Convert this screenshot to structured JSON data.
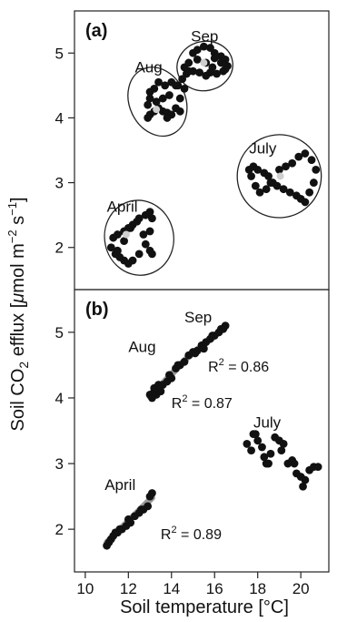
{
  "chart_data": {
    "type": "scatter",
    "ylabel_parts": {
      "pre": "Soil CO",
      "sub2": "2",
      "mid": " efflux [",
      "mu": "μ",
      "unit": "mol m",
      "exp1": "−2",
      "s": " s",
      "exp2": "−1",
      "post": "]"
    },
    "xlabel": "Soil temperature [°C]",
    "xlim": [
      9.5,
      21.3
    ],
    "xticks": [
      10,
      12,
      14,
      16,
      18,
      20
    ],
    "ylim": [
      1.35,
      5.65
    ],
    "yticks": [
      2,
      3,
      4,
      5
    ],
    "panels": [
      {
        "label": "(a)",
        "annotations": [
          {
            "text": "Sep",
            "x": 14.9,
            "y": 5.18
          },
          {
            "text": "Aug",
            "x": 12.3,
            "y": 4.7
          },
          {
            "text": "July",
            "x": 17.6,
            "y": 3.45
          },
          {
            "text": "April",
            "x": 11.0,
            "y": 2.55
          }
        ],
        "ellipses": [
          {
            "cx": 15.55,
            "cy": 4.8,
            "rx": 1.3,
            "ry": 0.38,
            "rot": -12
          },
          {
            "cx": 13.35,
            "cy": 4.25,
            "rx": 1.3,
            "ry": 0.55,
            "rot": -25
          },
          {
            "cx": 19.0,
            "cy": 3.1,
            "rx": 1.95,
            "ry": 0.64,
            "rot": -5
          },
          {
            "cx": 12.5,
            "cy": 2.15,
            "rx": 1.6,
            "ry": 0.58,
            "rot": -12
          }
        ],
        "series": [
          {
            "name": "Sep",
            "x": [
              15.0,
              15.2,
              15.5,
              15.8,
              16.0,
              16.3,
              16.5,
              16.6,
              16.4,
              16.1,
              15.8,
              15.6,
              15.3,
              15.0,
              14.8,
              14.7,
              14.6,
              14.8,
              15.2,
              15.6,
              16.0,
              16.3,
              16.5,
              15.9
            ],
            "y": [
              5.0,
              5.05,
              5.1,
              5.08,
              5.0,
              4.95,
              4.9,
              4.8,
              4.72,
              4.68,
              4.7,
              4.65,
              4.7,
              4.72,
              4.72,
              4.68,
              4.78,
              4.85,
              4.9,
              4.85,
              4.92,
              4.85,
              4.75,
              4.78
            ]
          },
          {
            "name": "Aug",
            "x": [
              12.9,
              13.0,
              13.2,
              13.4,
              13.6,
              13.8,
              14.0,
              14.2,
              14.4,
              14.3,
              14.0,
              13.7,
              13.4,
              13.2,
              13.0,
              12.9,
              13.0,
              13.3,
              13.6,
              13.9,
              14.2,
              14.5,
              14.6,
              14.4,
              13.8
            ],
            "y": [
              4.0,
              4.05,
              4.1,
              4.15,
              4.1,
              4.08,
              4.05,
              4.15,
              4.3,
              4.5,
              4.55,
              4.5,
              4.55,
              4.45,
              4.3,
              4.2,
              4.4,
              4.25,
              4.3,
              4.35,
              4.5,
              4.6,
              4.45,
              4.1,
              4.0
            ]
          },
          {
            "name": "July",
            "x": [
              17.6,
              17.8,
              18.0,
              18.3,
              18.5,
              18.6,
              18.9,
              19.2,
              19.5,
              19.8,
              20.0,
              20.2,
              20.4,
              20.6,
              20.7,
              20.5,
              20.2,
              19.9,
              19.6,
              19.3,
              19.0,
              18.7,
              18.4,
              18.1,
              17.9,
              17.7
            ],
            "y": [
              3.2,
              3.25,
              3.2,
              3.15,
              3.1,
              3.0,
              2.95,
              2.9,
              2.85,
              2.8,
              2.75,
              2.7,
              2.85,
              3.0,
              3.2,
              3.35,
              3.45,
              3.4,
              3.3,
              3.25,
              3.2,
              3.0,
              2.9,
              2.85,
              2.95,
              3.1
            ]
          },
          {
            "name": "April",
            "x": [
              11.2,
              11.3,
              11.5,
              11.8,
              12.0,
              12.2,
              12.5,
              12.8,
              13.0,
              13.1,
              13.0,
              12.8,
              12.5,
              12.2,
              12.0,
              11.8,
              11.6,
              11.4,
              11.5,
              11.8,
              12.1,
              12.4,
              12.7,
              13.0,
              13.1
            ],
            "y": [
              2.0,
              2.15,
              2.2,
              2.25,
              2.3,
              2.35,
              2.45,
              2.5,
              2.55,
              2.45,
              2.25,
              2.05,
              1.9,
              1.8,
              1.75,
              1.8,
              1.85,
              1.9,
              1.95,
              2.1,
              2.3,
              2.4,
              2.2,
              1.95,
              1.9
            ]
          }
        ],
        "highlights": {
          "x": [
            13.3,
            15.5,
            19.05,
            11.9
          ],
          "y": [
            4.13,
            4.85,
            3.1,
            2.2
          ]
        }
      },
      {
        "label": "(b)",
        "annotations": [
          {
            "text": "Sep",
            "x": 14.6,
            "y": 5.15
          },
          {
            "text": "Aug",
            "x": 12.0,
            "y": 4.7
          },
          {
            "text": "July",
            "x": 17.8,
            "y": 3.55
          },
          {
            "text": "April",
            "x": 10.9,
            "y": 2.6
          }
        ],
        "r2_labels": [
          {
            "text": "0.86",
            "x": 15.7,
            "y": 4.4
          },
          {
            "text": "0.87",
            "x": 14.0,
            "y": 3.85
          },
          {
            "text": "0.89",
            "x": 13.5,
            "y": 1.85
          }
        ],
        "trendlines": [
          {
            "x": [
              14.8,
              16.5
            ],
            "y": [
              4.63,
              5.08
            ]
          },
          {
            "x": [
              13.0,
              14.7
            ],
            "y": [
              4.02,
              4.6
            ]
          },
          {
            "x": [
              11.0,
              13.1
            ],
            "y": [
              1.8,
              2.48
            ]
          }
        ],
        "series": [
          {
            "name": "Sep",
            "x": [
              14.8,
              15.0,
              15.2,
              15.4,
              15.6,
              15.8,
              16.0,
              16.2,
              16.4,
              16.5,
              15.1,
              15.5,
              15.9,
              16.3
            ],
            "y": [
              4.65,
              4.7,
              4.72,
              4.8,
              4.85,
              4.9,
              4.95,
              5.0,
              5.05,
              5.1,
              4.68,
              4.75,
              4.95,
              5.05
            ]
          },
          {
            "name": "Aug",
            "x": [
              13.0,
              13.1,
              13.2,
              13.3,
              13.4,
              13.5,
              13.6,
              13.8,
              14.0,
              14.2,
              14.4,
              14.6,
              13.2,
              13.4,
              13.9,
              14.3
            ],
            "y": [
              4.05,
              4.0,
              4.1,
              4.05,
              4.15,
              4.1,
              4.2,
              4.25,
              4.3,
              4.45,
              4.5,
              4.55,
              4.15,
              4.2,
              4.35,
              4.5
            ]
          },
          {
            "name": "July",
            "x": [
              17.5,
              17.7,
              17.8,
              18.0,
              18.2,
              18.3,
              18.5,
              18.6,
              18.8,
              19.0,
              19.2,
              19.4,
              19.6,
              19.8,
              20.0,
              20.1,
              20.2,
              20.4,
              20.6,
              20.8,
              17.9,
              18.4,
              19.1,
              19.7
            ],
            "y": [
              3.3,
              3.2,
              3.45,
              3.35,
              3.25,
              3.1,
              3.0,
              3.15,
              3.4,
              3.35,
              3.3,
              3.0,
              3.05,
              2.85,
              2.8,
              2.65,
              2.75,
              2.9,
              2.95,
              2.95,
              3.45,
              3.0,
              3.2,
              3.0
            ]
          },
          {
            "name": "April",
            "x": [
              11.0,
              11.1,
              11.2,
              11.3,
              11.4,
              11.5,
              11.7,
              11.9,
              12.1,
              12.3,
              12.5,
              12.7,
              12.9,
              13.0,
              13.1,
              11.6,
              12.0,
              12.6
            ],
            "y": [
              1.75,
              1.8,
              1.85,
              1.9,
              1.95,
              1.95,
              2.0,
              2.05,
              2.1,
              2.2,
              2.25,
              2.3,
              2.35,
              2.5,
              2.55,
              2.0,
              2.15,
              2.3
            ]
          }
        ]
      }
    ]
  }
}
